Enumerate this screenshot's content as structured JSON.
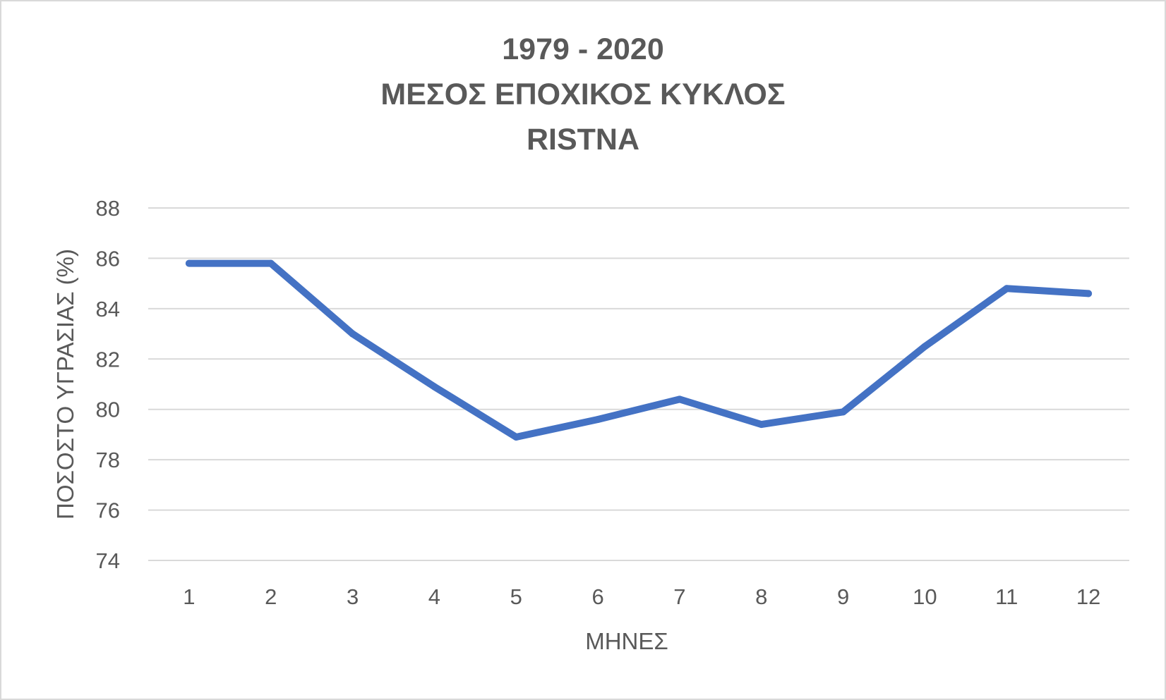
{
  "chart_data": {
    "type": "line",
    "title_lines": [
      "1979 - 2020",
      "ΜΕΣΟΣ ΕΠΟΧΙΚΟΣ ΚΥΚΛΟΣ",
      "RISTNA"
    ],
    "xlabel": "ΜΗΝΕΣ",
    "ylabel": "ΠΟΣΟΣΤΟ ΥΓΡΑΣΙΑΣ (%)",
    "categories": [
      "1",
      "2",
      "3",
      "4",
      "5",
      "6",
      "7",
      "8",
      "9",
      "10",
      "11",
      "12"
    ],
    "series": [
      {
        "values": [
          85.8,
          85.8,
          83.0,
          80.9,
          78.9,
          79.6,
          80.4,
          79.4,
          79.9,
          82.5,
          84.8,
          84.6
        ]
      }
    ],
    "ylim": [
      74,
      88
    ],
    "yticks": [
      "74",
      "76",
      "78",
      "80",
      "82",
      "84",
      "86",
      "88"
    ],
    "grid": true,
    "legend": "none",
    "line_color": "#4472c4",
    "grid_color": "#d9d9d9",
    "text_color": "#595959"
  }
}
